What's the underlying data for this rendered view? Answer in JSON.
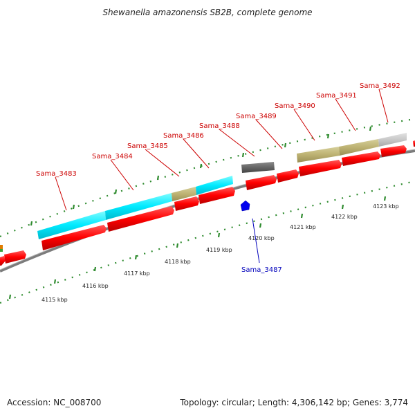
{
  "title": "Shewanella amazonensis SB2B, complete genome",
  "footer": {
    "accession": "Accession: NC_008700",
    "summary": "Topology: circular; Length: 4,306,142 bp; Genes: 3,774"
  },
  "colors": {
    "forward_cds": "#ff0000",
    "reverse_cds": "#0000ff",
    "tick": "#2e8b2e",
    "backbone": "#888888",
    "label_forward": "#cc0000",
    "label_reverse": "#0000bb"
  },
  "scale_labels": [
    "4115 kbp",
    "4116 kbp",
    "4117 kbp",
    "4118 kbp",
    "4119 kbp",
    "4120 kbp",
    "4121 kbp",
    "4122 kbp",
    "4123 kbp"
  ],
  "gene_labels": [
    {
      "text": "Sama_3483",
      "strand": "forward"
    },
    {
      "text": "Sama_3484",
      "strand": "forward"
    },
    {
      "text": "Sama_3485",
      "strand": "forward"
    },
    {
      "text": "Sama_3486",
      "strand": "forward"
    },
    {
      "text": "Sama_3488",
      "strand": "forward"
    },
    {
      "text": "Sama_3489",
      "strand": "forward"
    },
    {
      "text": "Sama_3490",
      "strand": "forward"
    },
    {
      "text": "Sama_3491",
      "strand": "forward"
    },
    {
      "text": "Sama_3492",
      "strand": "forward"
    },
    {
      "text": "Sama_3487",
      "strand": "reverse"
    }
  ],
  "feature_colors": [
    "cyan",
    "cyan",
    "cyan",
    "khaki",
    "cyan",
    "dark-grey",
    "khaki",
    "khaki",
    "light-grey"
  ]
}
